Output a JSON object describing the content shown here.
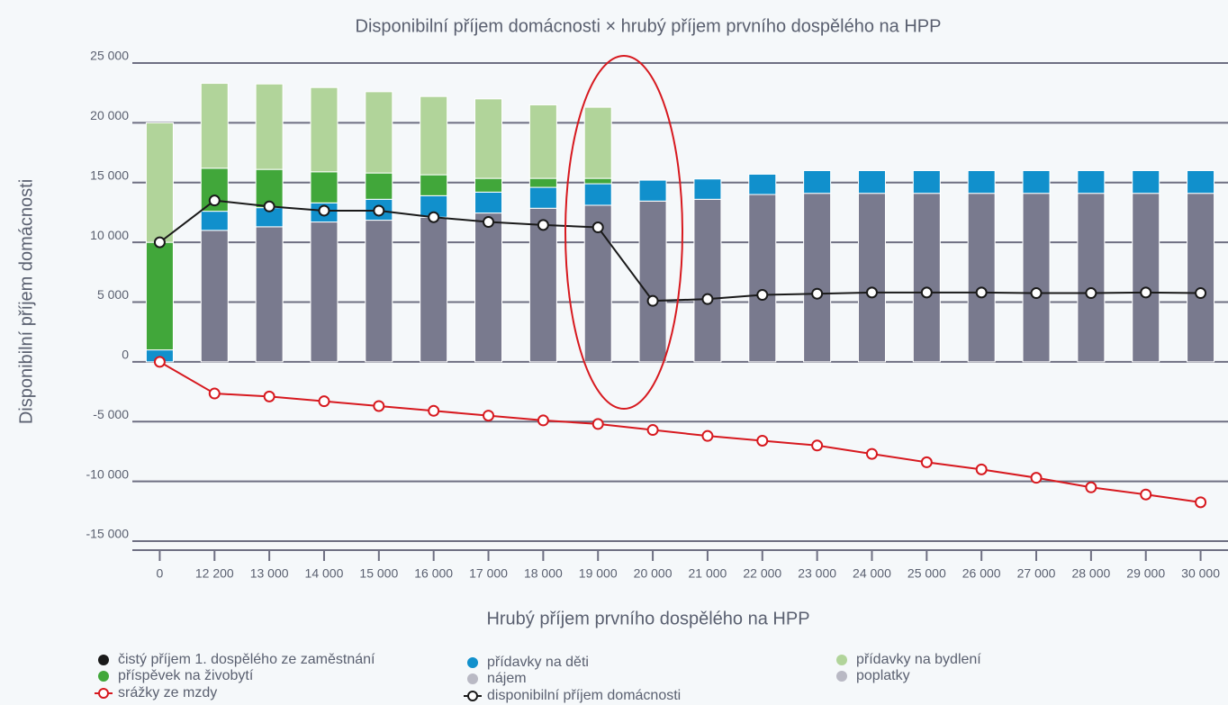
{
  "chart_data": {
    "type": "bar",
    "title": "Disponibilní příjem domácnosti × hrubý příjem prvního dospělého na HPP",
    "xlabel": "Hrubý příjem prvního dospělého na HPP",
    "ylabel": "Disponibilní příjem domácnosti",
    "stacked": true,
    "grid": true,
    "legend": "bottom",
    "categories": [
      "0",
      "12 200",
      "13 000",
      "14 000",
      "15 000",
      "16 000",
      "17 000",
      "18 000",
      "19 000",
      "20 000",
      "21 000",
      "22 000",
      "23 000",
      "24 000",
      "25 000",
      "26 000",
      "27 000",
      "28 000",
      "29 000",
      "30 000"
    ],
    "ylim": [
      -15000,
      25000
    ],
    "yticks": [
      {
        "value": -15000,
        "label": "-15 000"
      },
      {
        "value": -10000,
        "label": "-10 000"
      },
      {
        "value": -5000,
        "label": "-5 000"
      },
      0,
      {
        "value": 5000,
        "label": "5 000"
      },
      {
        "value": 10000,
        "label": "10 000"
      },
      {
        "value": 15000,
        "label": "15 000"
      },
      {
        "value": 20000,
        "label": "20 000"
      },
      {
        "value": 25000,
        "label": "25 000"
      }
    ],
    "series": [
      {
        "name": "čistý příjem 1. dospělého ze zaměstnání",
        "type": "bar",
        "color": "#797a8e",
        "legend_color": "#1a1a1a",
        "values": [
          0,
          11000,
          11300,
          11700,
          11850,
          12100,
          12450,
          12850,
          13100,
          13450,
          13600,
          14000,
          14100,
          14100,
          14100,
          14100,
          14100,
          14100,
          14100,
          14100
        ]
      },
      {
        "name": "přídavky na děti",
        "type": "bar",
        "color": "#1190cc",
        "values": [
          1000,
          1600,
          1600,
          1600,
          1750,
          1800,
          1750,
          1750,
          1800,
          1750,
          1700,
          1700,
          1900,
          1900,
          1900,
          1900,
          1900,
          1900,
          1900,
          1900
        ]
      },
      {
        "name": "příspěvek na živobytí",
        "type": "bar",
        "color": "#41a73a",
        "values": [
          9000,
          3600,
          3200,
          2600,
          2200,
          1750,
          1150,
          750,
          450,
          null,
          null,
          null,
          null,
          null,
          null,
          null,
          null,
          null,
          null,
          null
        ]
      },
      {
        "name": "přídavky na bydlení",
        "type": "bar",
        "color": "#b1d49a",
        "values": [
          10000,
          7100,
          7150,
          7050,
          6800,
          6550,
          6650,
          6150,
          5950,
          null,
          null,
          null,
          null,
          null,
          null,
          null,
          null,
          null,
          null,
          null
        ]
      },
      {
        "name": "disponibilní příjem domácnosti",
        "type": "line",
        "color": "#1a1a1a",
        "values": [
          10000,
          13500,
          13000,
          12650,
          12650,
          12100,
          11700,
          11450,
          11250,
          5100,
          5250,
          5600,
          5700,
          5800,
          5800,
          5800,
          5750,
          5750,
          5800,
          5750
        ]
      },
      {
        "name": "srážky ze mzdy",
        "type": "line",
        "color": "#d7191f",
        "values": [
          0,
          -2650,
          -2900,
          -3300,
          -3700,
          -4100,
          -4500,
          -4900,
          -5200,
          -5700,
          -6200,
          -6600,
          -7000,
          -7700,
          -8400,
          -9000,
          -9700,
          -10500,
          -11100,
          -11750
        ]
      }
    ],
    "legend_extra": [
      {
        "name": "nájem",
        "color": "#b9b9c4"
      },
      {
        "name": "poplatky",
        "color": "#b9b9c4"
      }
    ]
  }
}
